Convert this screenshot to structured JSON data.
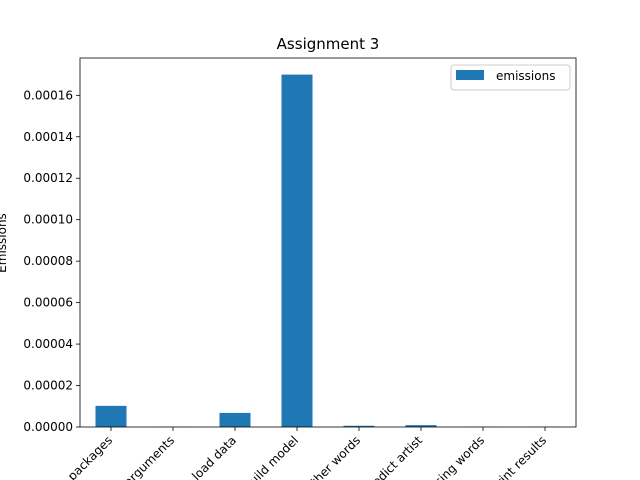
{
  "chart_data": {
    "type": "bar",
    "title": "Assignment 3",
    "xlabel": "",
    "ylabel": "Emissions",
    "categories": [
      "packages",
      "arguments",
      "load data",
      "build model",
      "other words",
      "predict artist",
      "missing words",
      "print results"
    ],
    "series": [
      {
        "name": "emissions",
        "color": "#1f77b4",
        "values": [
          1.02e-05,
          1e-07,
          6.8e-06,
          0.00017,
          6e-07,
          9e-07,
          1e-07,
          1e-07
        ]
      }
    ],
    "ylim": [
      0,
      0.000178
    ],
    "yticks": [
      0,
      2e-05,
      4e-05,
      6e-05,
      8e-05,
      0.0001,
      0.00012,
      0.00014,
      0.00016
    ],
    "ytick_labels": [
      "0.00000",
      "0.00002",
      "0.00004",
      "0.00006",
      "0.00008",
      "0.00010",
      "0.00012",
      "0.00014",
      "0.00016"
    ],
    "grid": false,
    "legend": "top-right"
  }
}
